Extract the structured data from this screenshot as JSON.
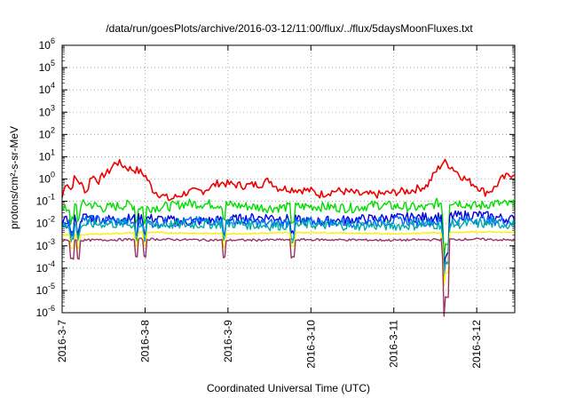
{
  "chart_data": {
    "type": "line",
    "title": "/data/run/goesPlots/archive/2016-03-12/11:00/flux/../flux/5daysMoonFluxes.txt",
    "xlabel": "Coordinated Universal Time (UTC)",
    "ylabel": "protons/cm²-s-sr-MeV",
    "yscale": "log",
    "ylim": [
      1e-06,
      1000000.0
    ],
    "xlim": [
      "2016-03-07 00:00",
      "2016-03-12 11:00"
    ],
    "grid": true,
    "legend": "none",
    "x_ticks": [
      "2016-3-7",
      "2016-3-8",
      "2016-3-9",
      "2016-3-10",
      "2016-3-11",
      "2016-3-12"
    ],
    "y_ticks": [
      {
        "base": "10",
        "exp": "-6"
      },
      {
        "base": "10",
        "exp": "-5"
      },
      {
        "base": "10",
        "exp": "-4"
      },
      {
        "base": "10",
        "exp": "-3"
      },
      {
        "base": "10",
        "exp": "-2"
      },
      {
        "base": "10",
        "exp": "-1"
      },
      {
        "base": "10",
        "exp": "0"
      },
      {
        "base": "10",
        "exp": "1"
      },
      {
        "base": "10",
        "exp": "2"
      },
      {
        "base": "10",
        "exp": "3"
      },
      {
        "base": "10",
        "exp": "4"
      },
      {
        "base": "10",
        "exp": "5"
      },
      {
        "base": "10",
        "exp": "6"
      }
    ],
    "series": [
      {
        "color": "#ee0000",
        "x": [
          0,
          0.05,
          0.1,
          0.15,
          0.2,
          0.3,
          0.35,
          0.45,
          0.5,
          0.55,
          0.65,
          0.8,
          0.9,
          1,
          1.1,
          1.3,
          1.5,
          1.7,
          1.9,
          2,
          2.2,
          2.4,
          2.5,
          2.6,
          2.8,
          3,
          3.1,
          3.3,
          3.5,
          3.6,
          3.8,
          4,
          4.2,
          4.4,
          4.5,
          4.6,
          4.7,
          4.8,
          4.9,
          5,
          5.1,
          5.2,
          5.3,
          5.4,
          5.46
        ],
        "values": [
          0.15,
          0.9,
          0.3,
          1.1,
          0.8,
          0.25,
          1.5,
          0.8,
          1.6,
          1.9,
          6,
          3,
          2.5,
          1.5,
          0.3,
          0.12,
          0.25,
          0.3,
          0.7,
          0.6,
          0.5,
          0.6,
          0.9,
          0.4,
          0.35,
          0.3,
          0.2,
          0.3,
          0.25,
          0.2,
          0.2,
          0.25,
          0.3,
          0.5,
          2,
          6,
          3.5,
          1.5,
          0.8,
          0.5,
          0.25,
          0.35,
          1,
          1.5,
          2
        ]
      },
      {
        "color": "#00dd00",
        "x": [
          0,
          0.3,
          0.5,
          0.8,
          1,
          1.3,
          1.5,
          2,
          2.5,
          3,
          3.5,
          3.8,
          4,
          4.4,
          4.5,
          4.7,
          5,
          5.2,
          5.46
        ],
        "values": [
          0.04,
          0.08,
          0.05,
          0.07,
          0.05,
          0.06,
          0.08,
          0.07,
          0.05,
          0.06,
          0.05,
          0.07,
          0.06,
          0.05,
          0.08,
          0.1,
          0.06,
          0.08,
          0.07
        ]
      },
      {
        "color": "#0000dd",
        "x": [
          0,
          0.3,
          0.5,
          1,
          1.5,
          2,
          2.5,
          3,
          3.5,
          4,
          4.5,
          5,
          5.46
        ],
        "values": [
          0.012,
          0.02,
          0.015,
          0.018,
          0.012,
          0.015,
          0.02,
          0.012,
          0.015,
          0.018,
          0.02,
          0.025,
          0.015
        ]
      },
      {
        "color": "#0066ff",
        "x": [
          0,
          0.4,
          1,
          1.5,
          2,
          2.5,
          3,
          3.5,
          4,
          4.5,
          5,
          5.46
        ],
        "values": [
          0.01,
          0.015,
          0.01,
          0.012,
          0.014,
          0.01,
          0.012,
          0.011,
          0.013,
          0.012,
          0.015,
          0.012
        ]
      },
      {
        "color": "#00aaaa",
        "x": [
          0,
          0.5,
          1,
          1.5,
          2,
          2.5,
          3,
          3.5,
          4,
          4.5,
          5,
          5.46
        ],
        "values": [
          0.008,
          0.01,
          0.009,
          0.009,
          0.01,
          0.008,
          0.009,
          0.008,
          0.008,
          0.009,
          0.01,
          0.009
        ]
      },
      {
        "color": "#ffee00",
        "x": [
          0,
          1,
          2,
          3,
          4,
          5,
          5.46
        ],
        "values": [
          0.003,
          0.004,
          0.0035,
          0.004,
          0.0035,
          0.0042,
          0.004
        ]
      },
      {
        "color": "#993366",
        "x": [
          0,
          1,
          2,
          3,
          4,
          5,
          5.46
        ],
        "values": [
          0.0017,
          0.002,
          0.0018,
          0.0019,
          0.0018,
          0.002,
          0.0018
        ]
      }
    ]
  }
}
